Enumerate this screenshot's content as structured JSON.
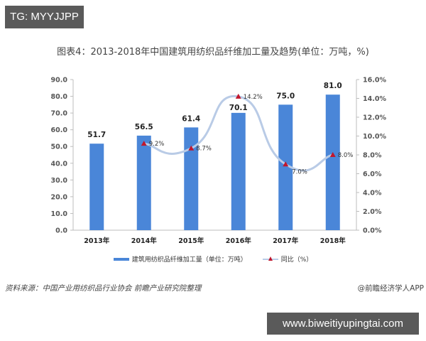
{
  "badges": {
    "top_left": "TG: MYYJJPP",
    "bottom_right": "www.biweitiyupingtai.com"
  },
  "chart_data": {
    "type": "bar",
    "title": "图表4：2013-2018年中国建筑用纺织品纤维加工量及趋势(单位：万吨，%)",
    "categories": [
      "2013年",
      "2014年",
      "2015年",
      "2016年",
      "2017年",
      "2018年"
    ],
    "series": [
      {
        "name": "建筑用纺织品纤维加工量（单位：万吨）",
        "type": "bar",
        "axis": "left",
        "color": "#4a86d8",
        "values": [
          51.7,
          56.5,
          61.4,
          70.1,
          75.0,
          81.0
        ],
        "labels": [
          "51.7",
          "56.5",
          "61.4",
          "70.1",
          "75.0",
          "81.0"
        ]
      },
      {
        "name": "同比（%）",
        "type": "line",
        "axis": "right",
        "color": "#b9cbe6",
        "marker_color": "#c0172d",
        "values": [
          null,
          9.2,
          8.7,
          14.2,
          7.0,
          8.0
        ],
        "labels": [
          "",
          "9.2%",
          "8.7%",
          "14.2%",
          "7.0%",
          "8.0%"
        ]
      }
    ],
    "left_axis": {
      "ylim": [
        0,
        90
      ],
      "ticks": [
        "0.0",
        "10.0",
        "20.0",
        "30.0",
        "40.0",
        "50.0",
        "60.0",
        "70.0",
        "80.0",
        "90.0"
      ]
    },
    "right_axis": {
      "ylim": [
        0,
        16
      ],
      "ticks": [
        "0.0%",
        "2.0%",
        "4.0%",
        "6.0%",
        "8.0%",
        "10.0%",
        "12.0%",
        "14.0%",
        "16.0%"
      ]
    },
    "xlabel": "",
    "ylabel": "",
    "grid": false,
    "legend_position": "bottom"
  },
  "legend": {
    "bar_label": "建筑用纺织品纤维加工量（单位：万吨）",
    "line_label": "同比（%）"
  },
  "footer": {
    "source": "资料来源：中国产业用纺织品行业协会 前瞻产业研究院整理",
    "credit": "@前瞻经济学人APP"
  }
}
